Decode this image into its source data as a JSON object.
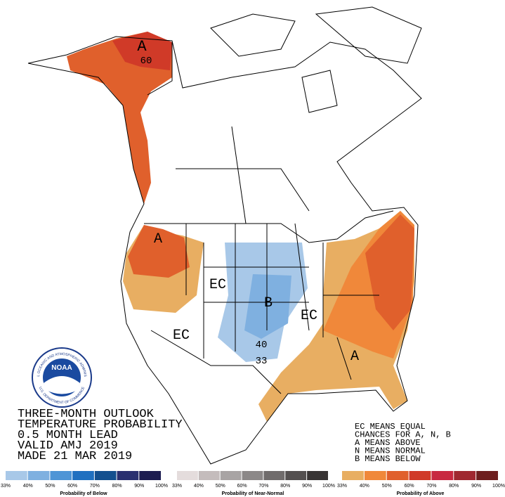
{
  "title_block": {
    "lines": [
      "THREE-MONTH OUTLOOK",
      "TEMPERATURE PROBABILITY",
      "0.5 MONTH LEAD",
      "VALID AMJ 2019",
      "MADE 21 MAR 2019"
    ]
  },
  "notes": [
    "EC MEANS EQUAL",
    "CHANCES FOR A, N, B",
    "A MEANS ABOVE",
    "N MEANS NORMAL",
    "B MEANS BELOW"
  ],
  "map_labels": [
    "A",
    "60",
    "A",
    "EC",
    "B",
    "EC",
    "EC",
    "40",
    "33",
    "A"
  ],
  "logo": {
    "name": "NOAA",
    "ring_top": "NATIONAL OCEANIC AND ATMOSPHERIC ADMINISTRATION",
    "ring_bottom": "U.S. DEPARTMENT OF COMMERCE"
  },
  "legends": [
    {
      "caption": "Probability of Below",
      "ticks": [
        "33%",
        "40%",
        "50%",
        "60%",
        "70%",
        "80%",
        "90%",
        "100%"
      ],
      "colors": [
        "#a8c8e8",
        "#7fb0e0",
        "#4f95d6",
        "#2070c0",
        "#14508f",
        "#2a3070",
        "#1c1c50"
      ]
    },
    {
      "caption": "Probability of Near-Normal",
      "ticks": [
        "33%",
        "40%",
        "50%",
        "60%",
        "70%",
        "80%",
        "90%",
        "100%"
      ],
      "colors": [
        "#e4dcdc",
        "#c4bcbc",
        "#a8a4a4",
        "#8c8888",
        "#706c6c",
        "#545050",
        "#383434"
      ]
    },
    {
      "caption": "Probability of Above",
      "ticks": [
        "33%",
        "40%",
        "50%",
        "60%",
        "70%",
        "80%",
        "90%",
        "100%"
      ],
      "colors": [
        "#e8ae62",
        "#f0883a",
        "#e0602c",
        "#d03a28",
        "#c82840",
        "#a02830",
        "#6e1e1e"
      ]
    }
  ]
}
